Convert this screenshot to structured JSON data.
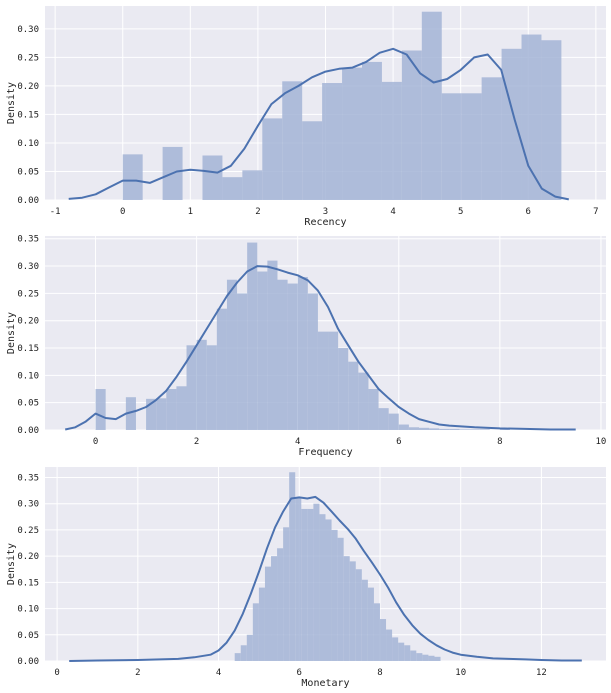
{
  "colors": {
    "panel_bg": "#EAEAF2",
    "grid": "#FFFFFF",
    "bar_fill": "#A3B4D6",
    "line": "#4C72B0",
    "text": "#222222"
  },
  "chart_data": [
    {
      "type": "bar",
      "overlay": "kde-line",
      "xlabel": "Recency",
      "ylabel": "Density",
      "xlim": [
        -1.15,
        7.15
      ],
      "ylim": [
        0,
        0.34
      ],
      "xticks": [
        -1,
        0,
        1,
        2,
        3,
        4,
        5,
        6,
        7
      ],
      "yticks": [
        0.0,
        0.05,
        0.1,
        0.15,
        0.2,
        0.25,
        0.3
      ],
      "tick_decimals": 2,
      "grid": true,
      "hist": {
        "bin_start": 0.0,
        "bin_width": 0.295,
        "values": [
          0.08,
          0.0,
          0.093,
          0.0,
          0.078,
          0.04,
          0.052,
          0.143,
          0.208,
          0.138,
          0.205,
          0.232,
          0.242,
          0.207,
          0.262,
          0.33,
          0.187,
          0.187,
          0.215,
          0.265,
          0.29,
          0.28
        ]
      },
      "kde": {
        "x": [
          -0.8,
          -0.6,
          -0.4,
          -0.2,
          0.0,
          0.2,
          0.4,
          0.6,
          0.8,
          1.0,
          1.2,
          1.4,
          1.6,
          1.8,
          2.0,
          2.2,
          2.4,
          2.6,
          2.8,
          3.0,
          3.2,
          3.4,
          3.6,
          3.8,
          4.0,
          4.2,
          4.4,
          4.6,
          4.8,
          5.0,
          5.2,
          5.4,
          5.6,
          5.8,
          6.0,
          6.2,
          6.4,
          6.6
        ],
        "y": [
          0.002,
          0.004,
          0.01,
          0.022,
          0.034,
          0.034,
          0.03,
          0.04,
          0.05,
          0.053,
          0.051,
          0.048,
          0.06,
          0.09,
          0.13,
          0.168,
          0.187,
          0.2,
          0.215,
          0.225,
          0.23,
          0.232,
          0.242,
          0.258,
          0.265,
          0.255,
          0.222,
          0.206,
          0.212,
          0.228,
          0.25,
          0.255,
          0.228,
          0.14,
          0.06,
          0.02,
          0.006,
          0.001
        ]
      }
    },
    {
      "type": "bar",
      "overlay": "kde-line",
      "xlabel": "Frequency",
      "ylabel": "Density",
      "xlim": [
        -1.0,
        10.1
      ],
      "ylim": [
        0,
        0.355
      ],
      "xticks": [
        0,
        2,
        4,
        6,
        8,
        10
      ],
      "yticks": [
        0.0,
        0.05,
        0.1,
        0.15,
        0.2,
        0.25,
        0.3,
        0.35
      ],
      "tick_decimals": 2,
      "grid": true,
      "hist": {
        "bin_start": 0.0,
        "bin_width": 0.2,
        "values": [
          0.075,
          0.0,
          0.0,
          0.06,
          0.0,
          0.057,
          0.058,
          0.075,
          0.08,
          0.155,
          0.165,
          0.155,
          0.222,
          0.275,
          0.25,
          0.343,
          0.29,
          0.31,
          0.275,
          0.268,
          0.28,
          0.25,
          0.18,
          0.18,
          0.15,
          0.125,
          0.105,
          0.075,
          0.04,
          0.03,
          0.01,
          0.005,
          0.004,
          0.003,
          0.002,
          0.002,
          0.001,
          0.001,
          0.001,
          0.0,
          0.001
        ]
      },
      "kde": {
        "x": [
          -0.6,
          -0.4,
          -0.2,
          0.0,
          0.2,
          0.4,
          0.6,
          0.8,
          1.0,
          1.2,
          1.4,
          1.6,
          1.8,
          2.0,
          2.2,
          2.4,
          2.6,
          2.8,
          3.0,
          3.2,
          3.4,
          3.6,
          3.8,
          4.0,
          4.2,
          4.4,
          4.6,
          4.8,
          5.0,
          5.2,
          5.4,
          5.6,
          5.8,
          6.0,
          6.2,
          6.4,
          6.6,
          6.8,
          7.0,
          7.5,
          8.0,
          8.5,
          9.0,
          9.5
        ],
        "y": [
          0.001,
          0.005,
          0.015,
          0.03,
          0.022,
          0.02,
          0.03,
          0.035,
          0.042,
          0.055,
          0.072,
          0.097,
          0.125,
          0.155,
          0.185,
          0.215,
          0.245,
          0.27,
          0.29,
          0.3,
          0.299,
          0.294,
          0.288,
          0.283,
          0.274,
          0.255,
          0.225,
          0.185,
          0.155,
          0.125,
          0.1,
          0.075,
          0.058,
          0.042,
          0.03,
          0.02,
          0.015,
          0.01,
          0.008,
          0.005,
          0.003,
          0.002,
          0.001,
          0.001
        ]
      }
    },
    {
      "type": "bar",
      "overlay": "kde-line",
      "xlabel": "Monetary",
      "ylabel": "Density",
      "xlim": [
        -0.3,
        13.6
      ],
      "ylim": [
        0,
        0.37
      ],
      "xticks": [
        0,
        2,
        4,
        6,
        8,
        10,
        12
      ],
      "yticks": [
        0.0,
        0.05,
        0.1,
        0.15,
        0.2,
        0.25,
        0.3,
        0.35
      ],
      "tick_decimals": 2,
      "grid": true,
      "hist": {
        "bin_start": 4.4,
        "bin_width": 0.15,
        "values": [
          0.015,
          0.03,
          0.05,
          0.11,
          0.14,
          0.18,
          0.2,
          0.215,
          0.255,
          0.36,
          0.31,
          0.29,
          0.29,
          0.3,
          0.28,
          0.27,
          0.25,
          0.235,
          0.2,
          0.19,
          0.175,
          0.155,
          0.14,
          0.11,
          0.08,
          0.06,
          0.045,
          0.035,
          0.03,
          0.02,
          0.015,
          0.012,
          0.01,
          0.008
        ]
      },
      "kde": {
        "x": [
          0.3,
          1.0,
          2.0,
          3.0,
          3.4,
          3.8,
          4.0,
          4.2,
          4.4,
          4.6,
          4.8,
          5.0,
          5.2,
          5.4,
          5.6,
          5.8,
          6.0,
          6.2,
          6.4,
          6.6,
          6.8,
          7.0,
          7.2,
          7.4,
          7.6,
          7.8,
          8.0,
          8.2,
          8.4,
          8.6,
          8.8,
          9.0,
          9.2,
          9.4,
          9.6,
          9.8,
          10.0,
          10.4,
          10.8,
          11.2,
          11.6,
          12.0,
          12.5,
          13.0
        ],
        "y": [
          0.0,
          0.001,
          0.002,
          0.004,
          0.007,
          0.012,
          0.02,
          0.035,
          0.058,
          0.09,
          0.128,
          0.17,
          0.215,
          0.255,
          0.285,
          0.31,
          0.312,
          0.31,
          0.313,
          0.302,
          0.285,
          0.268,
          0.252,
          0.233,
          0.21,
          0.188,
          0.165,
          0.14,
          0.112,
          0.088,
          0.068,
          0.052,
          0.04,
          0.03,
          0.022,
          0.016,
          0.012,
          0.008,
          0.005,
          0.004,
          0.003,
          0.002,
          0.001,
          0.001
        ]
      }
    }
  ]
}
